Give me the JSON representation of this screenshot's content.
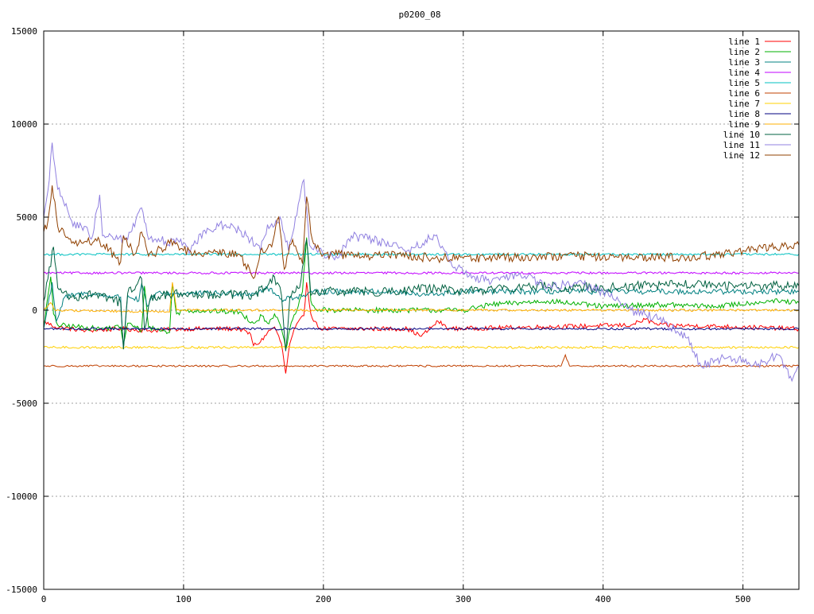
{
  "chart_data": {
    "type": "line",
    "title": "p0200_08",
    "xlabel": "",
    "ylabel": "",
    "xlim": [
      0,
      540
    ],
    "ylim": [
      -15000,
      15000
    ],
    "x_ticks": [
      0,
      100,
      200,
      300,
      400,
      500
    ],
    "y_ticks": [
      -15000,
      -10000,
      -5000,
      0,
      5000,
      10000,
      15000
    ],
    "x_tick_labels": [
      "0",
      "100",
      "200",
      "300",
      "400",
      "500"
    ],
    "y_tick_labels": [
      "-15000",
      "-10000",
      "-5000",
      "0",
      "5000",
      "10000",
      "15000"
    ],
    "grid": true,
    "legend_position": "top-right",
    "series": [
      {
        "name": "line 1",
        "color": "#ff0000",
        "base": -1000,
        "noise": 120,
        "points": [
          [
            0,
            -600
          ],
          [
            8,
            -900
          ],
          [
            30,
            -1100
          ],
          [
            55,
            -1000
          ],
          [
            75,
            -1100
          ],
          [
            100,
            -1000
          ],
          [
            140,
            -1000
          ],
          [
            148,
            -1300
          ],
          [
            150,
            -1900
          ],
          [
            155,
            -1700
          ],
          [
            160,
            -1200
          ],
          [
            165,
            -900
          ],
          [
            170,
            -1800
          ],
          [
            173,
            -3400
          ],
          [
            176,
            -1800
          ],
          [
            180,
            -900
          ],
          [
            186,
            -300
          ],
          [
            188,
            1500
          ],
          [
            191,
            -200
          ],
          [
            196,
            -900
          ],
          [
            200,
            -1000
          ],
          [
            260,
            -1000
          ],
          [
            270,
            -1400
          ],
          [
            282,
            -600
          ],
          [
            290,
            -1000
          ],
          [
            420,
            -800
          ],
          [
            430,
            -500
          ],
          [
            440,
            -800
          ],
          [
            500,
            -900
          ],
          [
            540,
            -1000
          ]
        ]
      },
      {
        "name": "line 2",
        "color": "#00b000",
        "base": 0,
        "noise": 140,
        "points": [
          [
            0,
            -900
          ],
          [
            5,
            1800
          ],
          [
            7,
            -200
          ],
          [
            10,
            -800
          ],
          [
            40,
            -1000
          ],
          [
            55,
            -900
          ],
          [
            57,
            -1800
          ],
          [
            60,
            -700
          ],
          [
            70,
            -1100
          ],
          [
            72,
            1300
          ],
          [
            75,
            -900
          ],
          [
            90,
            -1200
          ],
          [
            92,
            1400
          ],
          [
            95,
            -200
          ],
          [
            100,
            0
          ],
          [
            140,
            -100
          ],
          [
            150,
            -700
          ],
          [
            156,
            -300
          ],
          [
            160,
            -700
          ],
          [
            165,
            -200
          ],
          [
            170,
            -1000
          ],
          [
            173,
            -2100
          ],
          [
            176,
            -1000
          ],
          [
            180,
            -200
          ],
          [
            185,
            1000
          ],
          [
            188,
            3900
          ],
          [
            191,
            500
          ],
          [
            195,
            0
          ],
          [
            300,
            0
          ],
          [
            320,
            300
          ],
          [
            360,
            500
          ],
          [
            400,
            200
          ],
          [
            440,
            300
          ],
          [
            480,
            200
          ],
          [
            520,
            500
          ],
          [
            540,
            400
          ]
        ]
      },
      {
        "name": "line 3",
        "color": "#008080",
        "base": 1000,
        "noise": 150,
        "points": [
          [
            0,
            -1000
          ],
          [
            6,
            1500
          ],
          [
            9,
            -600
          ],
          [
            15,
            700
          ],
          [
            30,
            900
          ],
          [
            55,
            700
          ],
          [
            57,
            -2100
          ],
          [
            60,
            800
          ],
          [
            68,
            500
          ],
          [
            70,
            1400
          ],
          [
            74,
            200
          ],
          [
            80,
            900
          ],
          [
            100,
            900
          ],
          [
            150,
            900
          ],
          [
            160,
            1200
          ],
          [
            170,
            600
          ],
          [
            188,
            800
          ],
          [
            195,
            1000
          ],
          [
            250,
            1000
          ],
          [
            270,
            800
          ],
          [
            300,
            1000
          ],
          [
            400,
            1000
          ],
          [
            540,
            1000
          ]
        ]
      },
      {
        "name": "line 4",
        "color": "#c000ff",
        "base": 2000,
        "noise": 60,
        "points": [
          [
            0,
            2000
          ],
          [
            540,
            2000
          ]
        ]
      },
      {
        "name": "line 5",
        "color": "#00c0c0",
        "base": 3000,
        "noise": 60,
        "points": [
          [
            0,
            3000
          ],
          [
            540,
            3000
          ]
        ]
      },
      {
        "name": "line 6",
        "color": "#c04000",
        "base": -3000,
        "noise": 50,
        "points": [
          [
            0,
            -3000
          ],
          [
            370,
            -3000
          ],
          [
            373,
            -2400
          ],
          [
            376,
            -3000
          ],
          [
            540,
            -3000
          ]
        ]
      },
      {
        "name": "line 7",
        "color": "#ffd000",
        "base": -2000,
        "noise": 60,
        "points": [
          [
            0,
            -2000
          ],
          [
            540,
            -2000
          ]
        ]
      },
      {
        "name": "line 8",
        "color": "#000080",
        "base": -1000,
        "noise": 60,
        "points": [
          [
            0,
            -1000
          ],
          [
            540,
            -1000
          ]
        ]
      },
      {
        "name": "line 9",
        "color": "#ffb000",
        "base": 0,
        "noise": 60,
        "points": [
          [
            0,
            0
          ],
          [
            5,
            400
          ],
          [
            8,
            0
          ],
          [
            90,
            -100
          ],
          [
            92,
            1500
          ],
          [
            95,
            0
          ],
          [
            540,
            0
          ]
        ]
      },
      {
        "name": "line 10",
        "color": "#006040",
        "base": 1500,
        "noise": 250,
        "points": [
          [
            0,
            500
          ],
          [
            7,
            3400
          ],
          [
            10,
            1200
          ],
          [
            20,
            700
          ],
          [
            40,
            900
          ],
          [
            55,
            400
          ],
          [
            57,
            -2100
          ],
          [
            60,
            900
          ],
          [
            70,
            1700
          ],
          [
            72,
            -1000
          ],
          [
            76,
            600
          ],
          [
            85,
            800
          ],
          [
            100,
            900
          ],
          [
            150,
            800
          ],
          [
            160,
            1300
          ],
          [
            165,
            1800
          ],
          [
            170,
            800
          ],
          [
            173,
            -2200
          ],
          [
            176,
            700
          ],
          [
            183,
            1200
          ],
          [
            188,
            3800
          ],
          [
            191,
            800
          ],
          [
            200,
            1000
          ],
          [
            250,
            1000
          ],
          [
            280,
            1200
          ],
          [
            300,
            1000
          ],
          [
            350,
            1300
          ],
          [
            400,
            1200
          ],
          [
            450,
            1400
          ],
          [
            500,
            1300
          ],
          [
            540,
            1300
          ]
        ]
      },
      {
        "name": "line 11",
        "color": "#9080e0",
        "base": 3000,
        "noise": 250,
        "points": [
          [
            0,
            5000
          ],
          [
            4,
            7000
          ],
          [
            6,
            9000
          ],
          [
            10,
            6500
          ],
          [
            20,
            4800
          ],
          [
            35,
            4000
          ],
          [
            40,
            6200
          ],
          [
            42,
            4000
          ],
          [
            60,
            3800
          ],
          [
            70,
            5500
          ],
          [
            75,
            3800
          ],
          [
            100,
            3600
          ],
          [
            105,
            3200
          ],
          [
            115,
            4300
          ],
          [
            130,
            4600
          ],
          [
            140,
            4300
          ],
          [
            145,
            4000
          ],
          [
            155,
            3200
          ],
          [
            160,
            4600
          ],
          [
            170,
            4800
          ],
          [
            175,
            3200
          ],
          [
            180,
            5000
          ],
          [
            186,
            7000
          ],
          [
            190,
            3500
          ],
          [
            200,
            3000
          ],
          [
            210,
            2800
          ],
          [
            220,
            4000
          ],
          [
            240,
            3700
          ],
          [
            260,
            3200
          ],
          [
            280,
            4000
          ],
          [
            290,
            2600
          ],
          [
            300,
            2000
          ],
          [
            320,
            1500
          ],
          [
            340,
            2000
          ],
          [
            360,
            1200
          ],
          [
            380,
            1500
          ],
          [
            400,
            1000
          ],
          [
            420,
            0
          ],
          [
            440,
            -500
          ],
          [
            460,
            -1500
          ],
          [
            470,
            -3000
          ],
          [
            490,
            -2500
          ],
          [
            510,
            -3000
          ],
          [
            525,
            -2400
          ],
          [
            535,
            -3800
          ],
          [
            540,
            -3000
          ]
        ]
      },
      {
        "name": "line 12",
        "color": "#904000",
        "base": 3000,
        "noise": 250,
        "points": [
          [
            0,
            4200
          ],
          [
            3,
            4800
          ],
          [
            6,
            6700
          ],
          [
            10,
            4500
          ],
          [
            20,
            3600
          ],
          [
            40,
            3700
          ],
          [
            55,
            2600
          ],
          [
            57,
            4000
          ],
          [
            65,
            3000
          ],
          [
            70,
            4200
          ],
          [
            75,
            2900
          ],
          [
            90,
            3600
          ],
          [
            100,
            3200
          ],
          [
            140,
            3000
          ],
          [
            150,
            1700
          ],
          [
            155,
            3200
          ],
          [
            163,
            3400
          ],
          [
            168,
            5000
          ],
          [
            172,
            2200
          ],
          [
            178,
            3800
          ],
          [
            185,
            2500
          ],
          [
            188,
            6100
          ],
          [
            192,
            3800
          ],
          [
            200,
            3000
          ],
          [
            260,
            2900
          ],
          [
            280,
            2800
          ],
          [
            300,
            2800
          ],
          [
            400,
            2900
          ],
          [
            460,
            2800
          ],
          [
            500,
            3200
          ],
          [
            540,
            3500
          ]
        ]
      }
    ]
  }
}
